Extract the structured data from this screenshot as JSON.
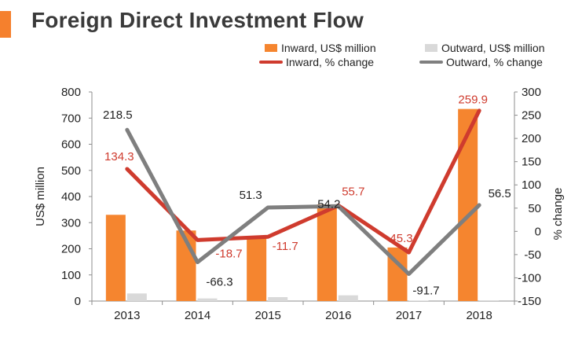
{
  "header": {
    "title": "Foreign Direct Investment Flow"
  },
  "colors": {
    "inward_bar": "#f5852f",
    "outward_bar": "#d9d9d9",
    "inward_line": "#cf3b2e",
    "outward_line": "#7f7f7f",
    "accent": "#f5802d"
  },
  "chart_data": {
    "type": "bar",
    "categories": [
      "2013",
      "2014",
      "2015",
      "2016",
      "2017",
      "2018"
    ],
    "series": [
      {
        "name": "Inward, US$ million",
        "kind": "bar",
        "axis": "left",
        "values": [
          330,
          270,
          240,
          370,
          205,
          735
        ]
      },
      {
        "name": "Outward, US$ million",
        "kind": "bar",
        "axis": "left",
        "values": [
          29,
          10,
          15,
          22,
          2,
          3
        ]
      },
      {
        "name": "Inward, % change",
        "kind": "line",
        "axis": "right",
        "values": [
          134.3,
          -18.7,
          -11.7,
          55.7,
          -45.3,
          259.9
        ],
        "labels": [
          "134.3",
          "-18.7",
          "-11.7",
          "55.7",
          "-45.3",
          "259.9"
        ]
      },
      {
        "name": "Outward, % change",
        "kind": "line",
        "axis": "right",
        "values": [
          218.5,
          -66.3,
          51.3,
          54.2,
          -91.7,
          56.5
        ],
        "labels": [
          "218.5",
          "-66.3",
          "51.3",
          "54.2",
          "-91.7",
          "56.5"
        ]
      }
    ],
    "ylabel": "US$ million",
    "y2label": "% change",
    "ylim": [
      0,
      800
    ],
    "y2lim": [
      -150,
      300
    ],
    "yticks": [
      "0",
      "100",
      "200",
      "300",
      "400",
      "500",
      "600",
      "700",
      "800"
    ],
    "y2ticks": [
      "-150",
      "-100",
      "-50",
      "0",
      "50",
      "100",
      "150",
      "200",
      "250",
      "300"
    ],
    "legend": [
      {
        "label": "Inward, US$ million",
        "marker": "bar",
        "color": "#f5852f"
      },
      {
        "label": "Outward, US$ million",
        "marker": "bar",
        "color": "#d9d9d9"
      },
      {
        "label": "Inward, % change",
        "marker": "line",
        "color": "#cf3b2e"
      },
      {
        "label": "Outward, % change",
        "marker": "line",
        "color": "#7f7f7f"
      }
    ],
    "legend_position": "top-right"
  }
}
